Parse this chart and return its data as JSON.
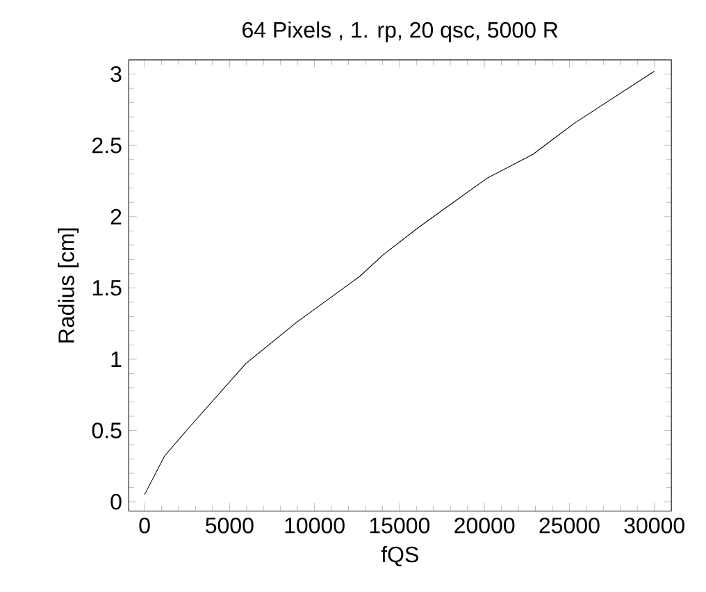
{
  "chart_data": {
    "type": "line",
    "title": "64 Pixels , 1. rp, 20 qsc, 5000 R",
    "xlabel": "fQS",
    "ylabel": "Radius [cm]",
    "x": [
      0,
      1170,
      2540,
      5960,
      8960,
      12650,
      14020,
      16070,
      17700,
      20160,
      22890,
      24000,
      25350,
      30000
    ],
    "series": [
      {
        "color": "#000000",
        "values": [
          0.05,
          0.32,
          0.51,
          0.97,
          1.26,
          1.58,
          1.73,
          1.92,
          2.06,
          2.27,
          2.44,
          2.54,
          2.66,
          3.02
        ]
      }
    ],
    "xlim": [
      -930,
      31000
    ],
    "ylim": [
      -0.065,
      3.1
    ],
    "xticks": [
      0,
      5000,
      10000,
      15000,
      20000,
      25000,
      30000
    ],
    "yticks": [
      0,
      0.5,
      1,
      1.5,
      2,
      2.5,
      3
    ],
    "grid": false,
    "marker": "none",
    "line_style": "solid"
  }
}
